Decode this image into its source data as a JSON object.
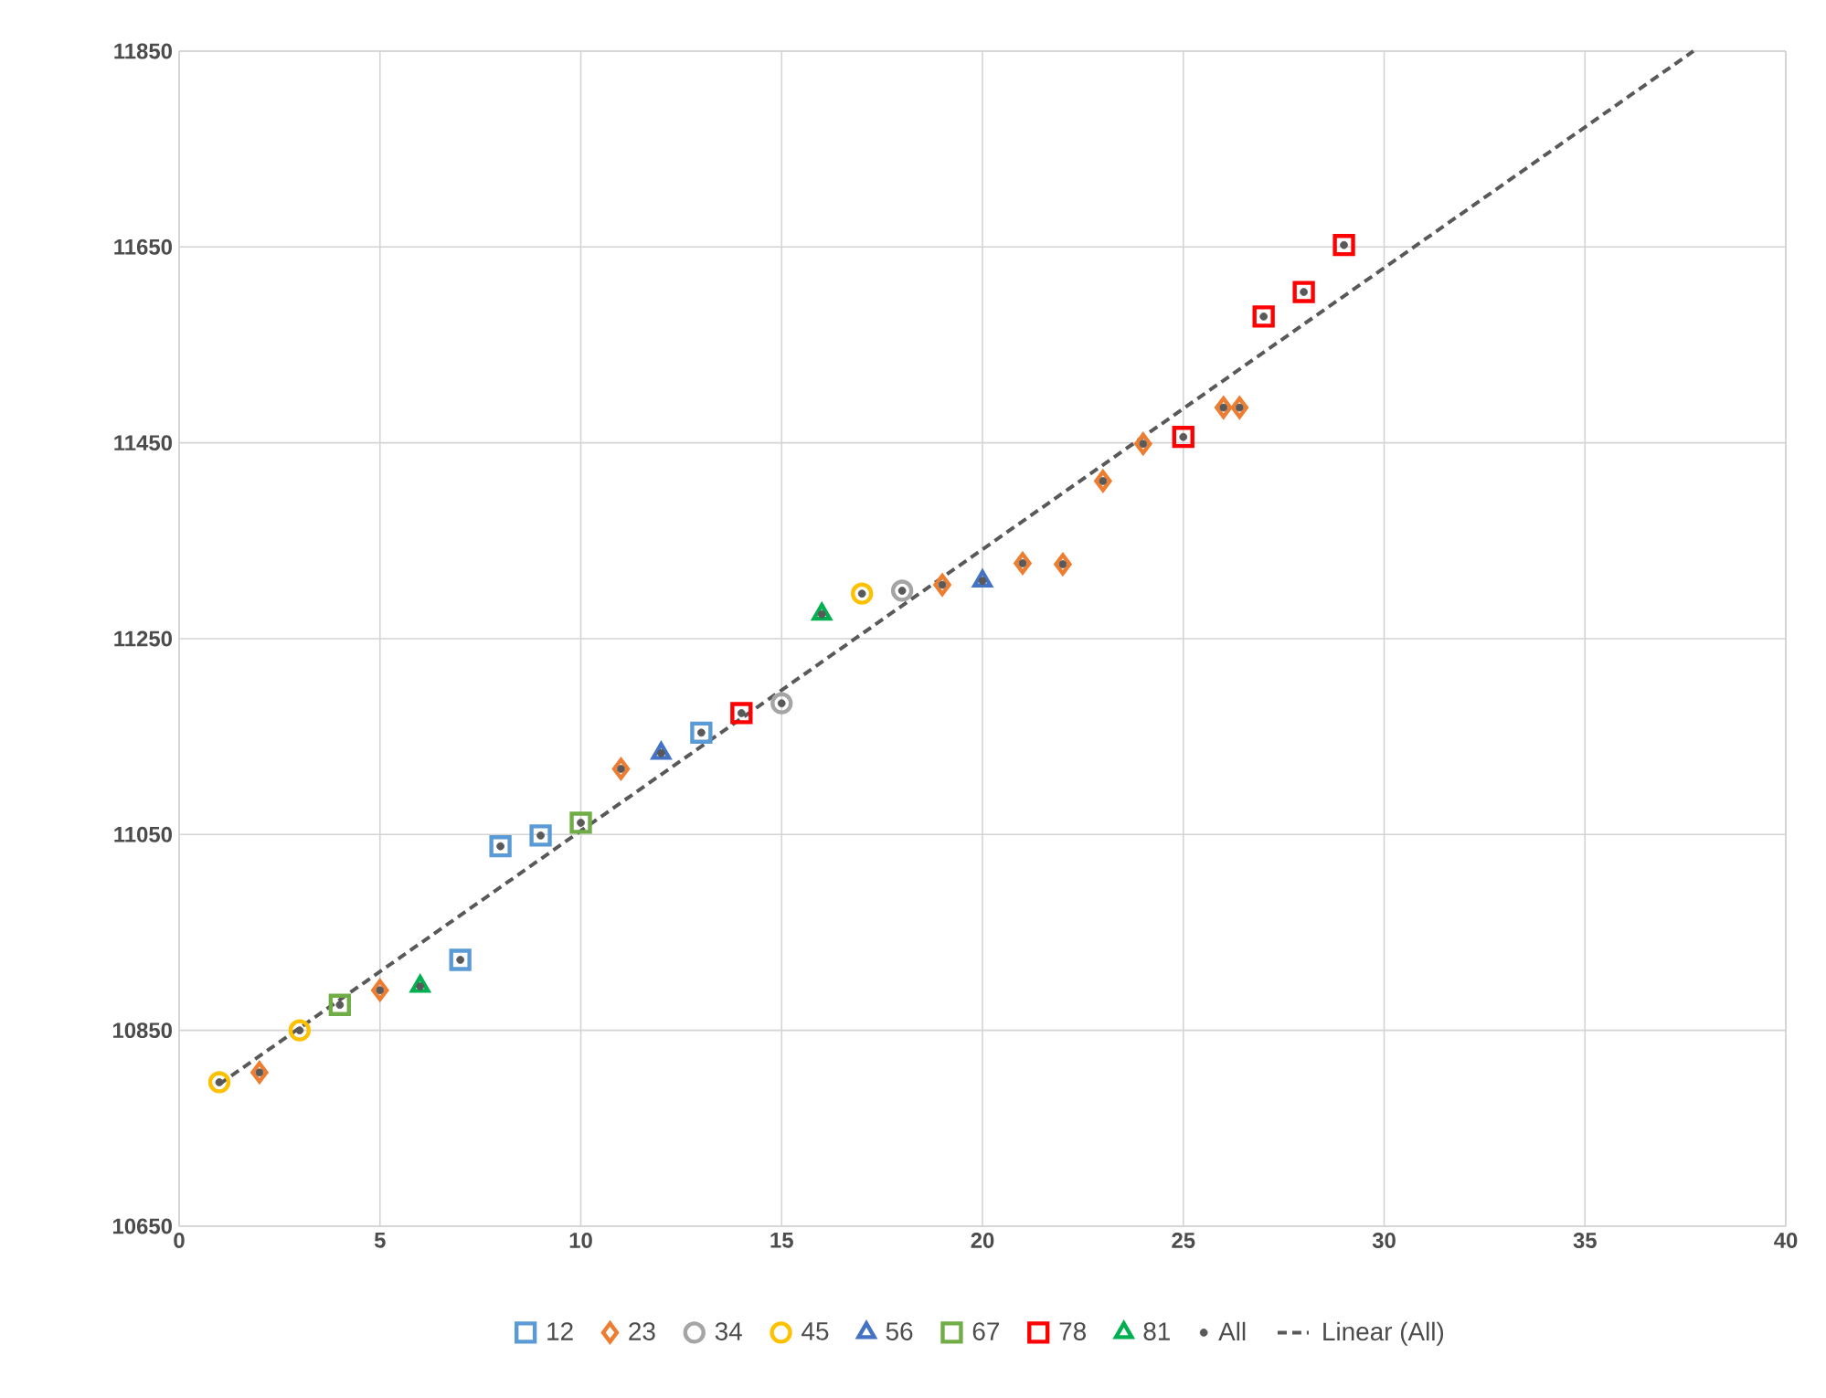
{
  "chart_data": {
    "type": "scatter",
    "xlim": [
      0,
      40
    ],
    "ylim": [
      10650,
      11850
    ],
    "xticks": [
      0,
      5,
      10,
      15,
      20,
      25,
      30,
      35,
      40
    ],
    "yticks": [
      10650,
      10850,
      11050,
      11250,
      11450,
      11650,
      11850
    ],
    "grid": true,
    "legend": "bottom",
    "series": [
      {
        "name": "12",
        "color": "#5b9bd5",
        "marker": "square",
        "x": [
          7,
          8,
          9,
          13
        ],
        "values": [
          10922,
          11038,
          11049,
          11154
        ]
      },
      {
        "name": "23",
        "color": "#ed7d31",
        "marker": "diamond",
        "x": [
          2,
          5,
          11,
          19,
          21,
          22,
          23,
          24,
          26,
          26.4
        ],
        "values": [
          10807,
          10891,
          11117,
          11305,
          11327,
          11326,
          11411,
          11449,
          11486,
          11486
        ]
      },
      {
        "name": "34",
        "color": "#a5a5a5",
        "marker": "circle",
        "x": [
          15,
          18
        ],
        "values": [
          11184,
          11299
        ]
      },
      {
        "name": "45",
        "color": "#ffc000",
        "marker": "circle",
        "x": [
          1,
          3,
          17
        ],
        "values": [
          10797,
          10850,
          11296
        ]
      },
      {
        "name": "56",
        "color": "#4472c4",
        "marker": "triangle",
        "x": [
          12,
          20
        ],
        "values": [
          11133,
          11309
        ]
      },
      {
        "name": "67",
        "color": "#70ad47",
        "marker": "square",
        "x": [
          4,
          10
        ],
        "values": [
          10876,
          11062
        ]
      },
      {
        "name": "78",
        "color": "#ff0000",
        "marker": "square",
        "x": [
          14,
          25,
          27,
          28,
          29
        ],
        "values": [
          11174,
          11456,
          11579,
          11604,
          11652
        ]
      },
      {
        "name": "81",
        "color": "#00b050",
        "marker": "triangle",
        "x": [
          6,
          16
        ],
        "values": [
          10895,
          11275
        ]
      },
      {
        "name": "All",
        "color": "#595959",
        "marker": "circle",
        "x": [
          1,
          2,
          3,
          4,
          5,
          6,
          7,
          8,
          9,
          10,
          11,
          12,
          13,
          14,
          15,
          16,
          17,
          18,
          19,
          20,
          21,
          22,
          23,
          24,
          25,
          26,
          26.4,
          27,
          28,
          29
        ],
        "values": [
          10797,
          10807,
          10850,
          10876,
          10891,
          10895,
          10922,
          11038,
          11049,
          11062,
          11117,
          11133,
          11154,
          11174,
          11184,
          11275,
          11296,
          11299,
          11305,
          11309,
          11327,
          11326,
          11411,
          11449,
          11456,
          11486,
          11486,
          11579,
          11604,
          11652
        ]
      },
      {
        "name": "Linear (All)",
        "type": "line",
        "color": "#595959",
        "marker": "none",
        "line_style": "dashed",
        "x": [
          1,
          37.7
        ],
        "values": [
          10795,
          11850
        ]
      }
    ]
  }
}
